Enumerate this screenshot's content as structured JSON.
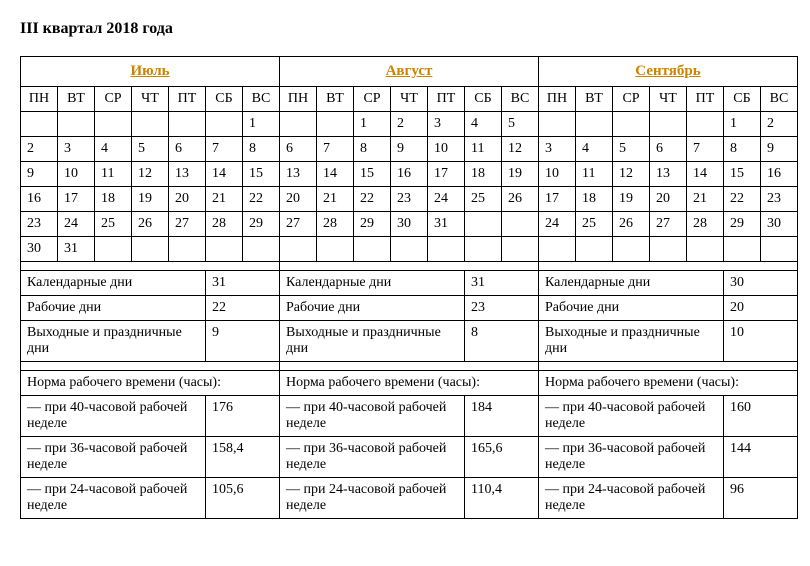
{
  "title": "III квартал 2018 года",
  "dow": [
    "ПН",
    "ВТ",
    "СР",
    "ЧТ",
    "ПТ",
    "СБ",
    "ВС"
  ],
  "months": [
    {
      "name": "Июль",
      "weeks": [
        [
          "",
          "",
          "",
          "",
          "",
          "",
          "1"
        ],
        [
          "2",
          "3",
          "4",
          "5",
          "6",
          "7",
          "8"
        ],
        [
          "9",
          "10",
          "11",
          "12",
          "13",
          "14",
          "15"
        ],
        [
          "16",
          "17",
          "18",
          "19",
          "20",
          "21",
          "22"
        ],
        [
          "23",
          "24",
          "25",
          "26",
          "27",
          "28",
          "29"
        ],
        [
          "30",
          "31",
          "",
          "",
          "",
          "",
          ""
        ]
      ],
      "bold": [
        "1",
        "7",
        "8",
        "14",
        "15",
        "21",
        "22",
        "28",
        "29"
      ],
      "stats": {
        "calendar_days": "31",
        "work_days": "22",
        "weekend_days": "9",
        "h40": "176",
        "h36": "158,4",
        "h24": "105,6"
      }
    },
    {
      "name": "Август",
      "weeks": [
        [
          "",
          "",
          "1",
          "2",
          "3",
          "4",
          "5"
        ],
        [
          "6",
          "7",
          "8",
          "9",
          "10",
          "11",
          "12"
        ],
        [
          "13",
          "14",
          "15",
          "16",
          "17",
          "18",
          "19"
        ],
        [
          "20",
          "21",
          "22",
          "23",
          "24",
          "25",
          "26"
        ],
        [
          "27",
          "28",
          "29",
          "30",
          "31",
          "",
          ""
        ],
        [
          "",
          "",
          "",
          "",
          "",
          "",
          ""
        ]
      ],
      "bold": [
        "4",
        "5",
        "11",
        "12",
        "18",
        "19",
        "25",
        "26"
      ],
      "stats": {
        "calendar_days": "31",
        "work_days": "23",
        "weekend_days": "8",
        "h40": "184",
        "h36": "165,6",
        "h24": "110,4"
      }
    },
    {
      "name": "Сентябрь",
      "weeks": [
        [
          "",
          "",
          "",
          "",
          "",
          "1",
          "2"
        ],
        [
          "3",
          "4",
          "5",
          "6",
          "7",
          "8",
          "9"
        ],
        [
          "10",
          "11",
          "12",
          "13",
          "14",
          "15",
          "16"
        ],
        [
          "17",
          "18",
          "19",
          "20",
          "21",
          "22",
          "23"
        ],
        [
          "24",
          "25",
          "26",
          "27",
          "28",
          "29",
          "30"
        ],
        [
          "",
          "",
          "",
          "",
          "",
          "",
          ""
        ]
      ],
      "bold": [
        "1",
        "2",
        "8",
        "9",
        "15",
        "16",
        "22",
        "23",
        "29",
        "30"
      ],
      "stats": {
        "calendar_days": "30",
        "work_days": "20",
        "weekend_days": "10",
        "h40": "160",
        "h36": "144",
        "h24": "96"
      }
    }
  ],
  "labels": {
    "calendar_days": "Календарные дни",
    "work_days": "Рабочие дни",
    "weekend_days": "Выходные и празднич­ные дни",
    "norm_header": "Норма рабочего времени (часы):",
    "h40": "— при 40-часовой рабо­чей неделе",
    "h36": "— при 36-часовой рабо­чей неделе",
    "h24": "— при 24-часовой рабо­чей неделе"
  }
}
